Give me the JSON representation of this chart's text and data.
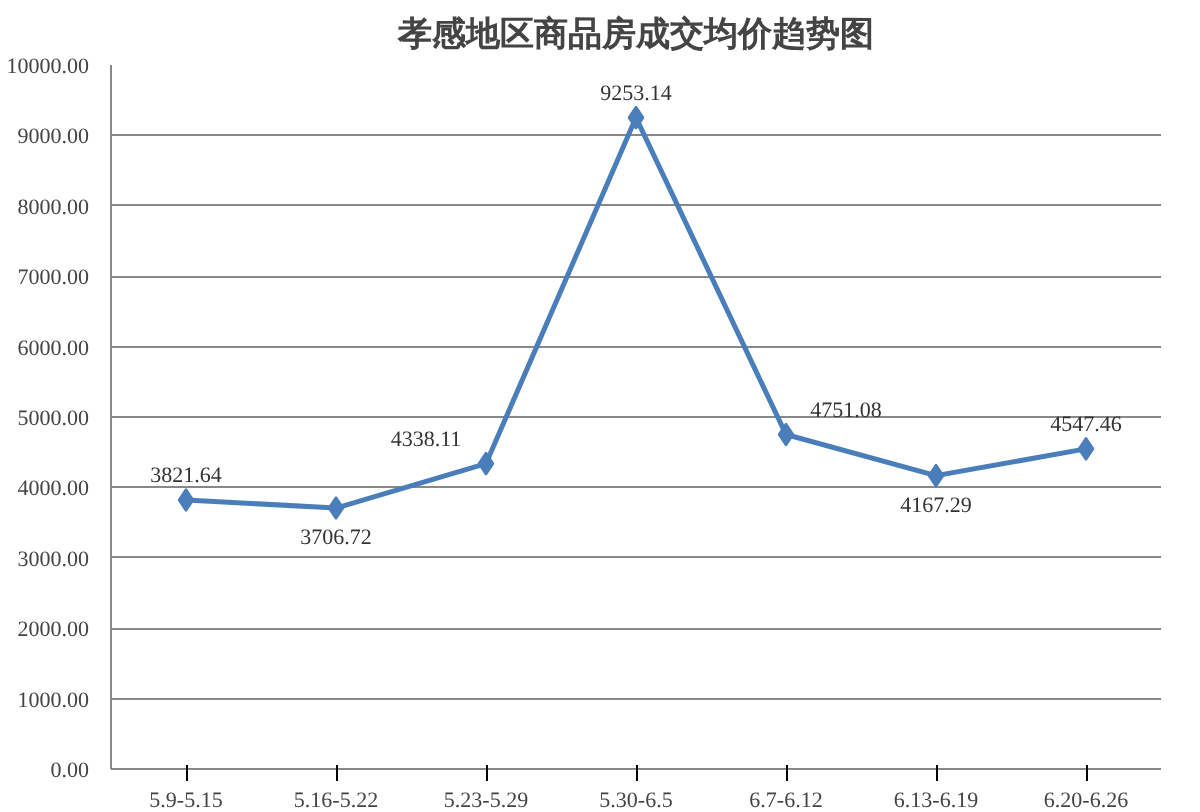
{
  "chart_data": {
    "type": "line",
    "title": "孝感地区商品房成交均价趋势图",
    "categories": [
      "5.9-5.15",
      "5.16-5.22",
      "5.23-5.29",
      "5.30-6.5",
      "6.7-6.12",
      "6.13-6.19",
      "6.20-6.26"
    ],
    "series": [
      {
        "color": "#4a7ebb",
        "values": [
          3821.64,
          3706.72,
          4338.11,
          9253.14,
          4751.08,
          4167.29,
          4547.46
        ]
      }
    ],
    "ylim": [
      0,
      10000
    ],
    "yticks": [
      {
        "value": 0,
        "label": "0.00"
      },
      {
        "value": 1000,
        "label": "1000.00"
      },
      {
        "value": 2000,
        "label": "2000.00"
      },
      {
        "value": 3000,
        "label": "3000.00"
      },
      {
        "value": 4000,
        "label": "4000.00"
      },
      {
        "value": 5000,
        "label": "5000.00"
      },
      {
        "value": 6000,
        "label": "6000.00"
      },
      {
        "value": 7000,
        "label": "7000.00"
      },
      {
        "value": 8000,
        "label": "8000.00"
      },
      {
        "value": 9000,
        "label": "9000.00"
      },
      {
        "value": 10000,
        "label": "10000.00"
      }
    ],
    "grid": "y",
    "marker": "diamond",
    "line_style": "solid",
    "data_labels": true
  }
}
